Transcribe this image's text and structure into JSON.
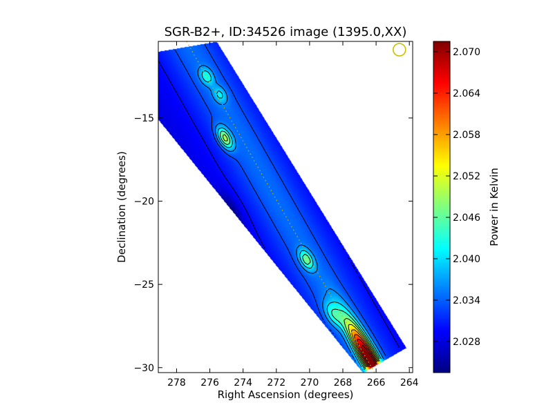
{
  "chart_data": {
    "type": "heatmap",
    "title": "SGR-B2+, ID:34526 image (1395.0,XX)",
    "xlabel": "Right Ascension (degrees)",
    "ylabel": "Declination (degrees)",
    "xlim": [
      279.1,
      263.8
    ],
    "ylim": [
      -30.3,
      -10.4
    ],
    "xticks": [
      278,
      276,
      274,
      272,
      270,
      268,
      266,
      264
    ],
    "yticks": [
      -15,
      -20,
      -25,
      -30
    ],
    "colorbar": {
      "label": "Power in Kelvin",
      "range": [
        2.0235,
        2.0715
      ],
      "ticks": [
        "2.028",
        "2.034",
        "2.040",
        "2.046",
        "2.052",
        "2.058",
        "2.064",
        "2.070"
      ],
      "colormap": "jet"
    },
    "strip_corners": [
      [
        279.1,
        -11.0
      ],
      [
        275.6,
        -10.4
      ],
      [
        264.2,
        -28.8
      ],
      [
        266.8,
        -30.3
      ],
      [
        279.1,
        -15.1
      ]
    ],
    "ridge_line": [
      [
        277.4,
        -10.4
      ],
      [
        266.1,
        -30.3
      ]
    ],
    "peaks": [
      {
        "ra": 266.4,
        "dec": -29.5,
        "value": 2.07
      },
      {
        "ra": 275.1,
        "dec": -16.2,
        "value": 2.048
      },
      {
        "ra": 270.2,
        "dec": -23.5,
        "value": 2.044
      },
      {
        "ra": 276.2,
        "dec": -12.5,
        "value": 2.04
      },
      {
        "ra": 275.4,
        "dec": -13.6,
        "value": 2.038
      },
      {
        "ra": 268.6,
        "dec": -26.8,
        "value": 2.04
      }
    ],
    "depression": {
      "ra": 274.7,
      "dec": -20.6,
      "value": 2.024
    },
    "beam_marker": {
      "ra": 264.6,
      "dec": -10.9
    },
    "contour_levels": [
      2.03,
      2.033,
      2.036,
      2.04,
      2.044,
      2.048,
      2.052,
      2.056,
      2.06,
      2.064,
      2.068
    ]
  }
}
